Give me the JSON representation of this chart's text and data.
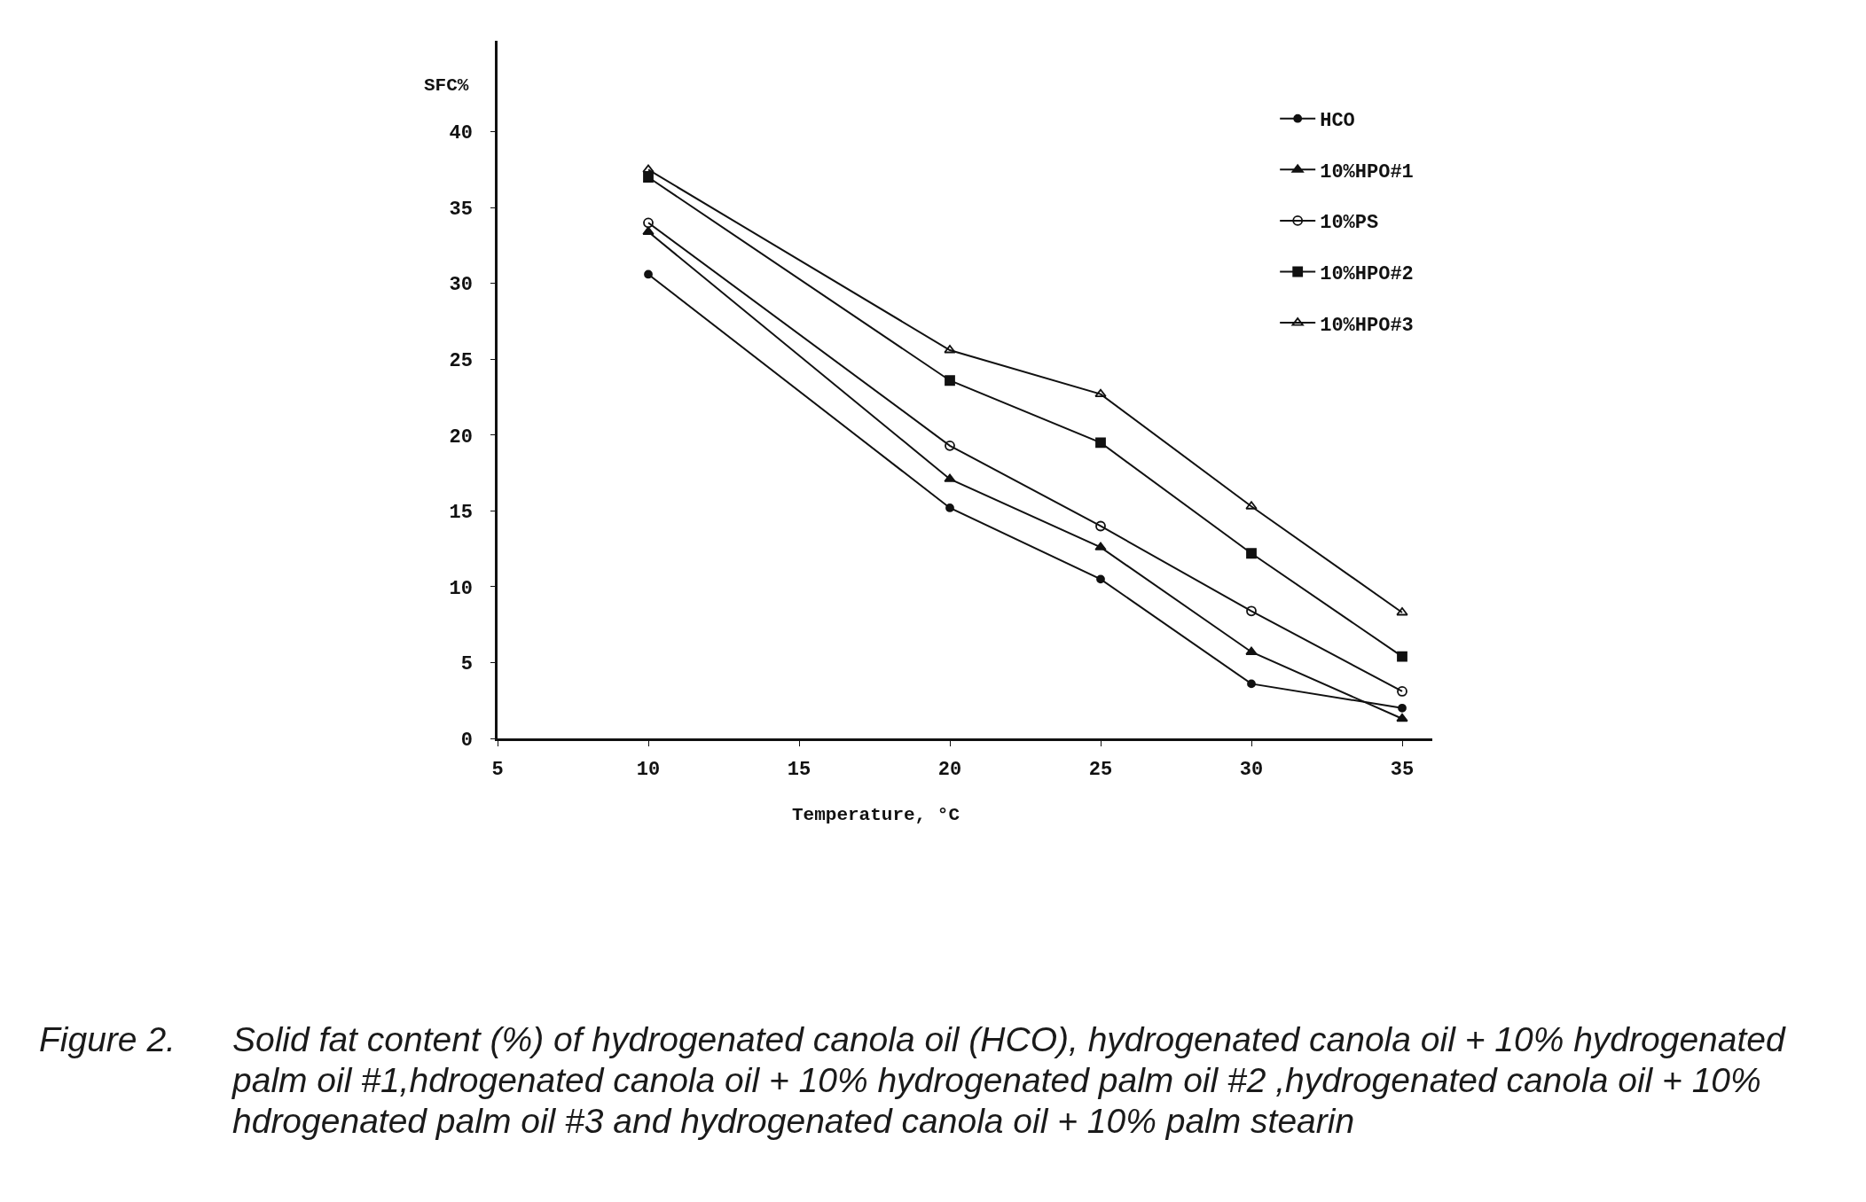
{
  "chart_data": {
    "type": "line",
    "xlabel": "Temperature, °C",
    "ylabel": "SFC%",
    "x": [
      10,
      20,
      25,
      30,
      35
    ],
    "series": [
      {
        "name": "HCO",
        "color": "#111111",
        "marker": "circle",
        "values": [
          30.6,
          15.2,
          10.5,
          3.6,
          2.0
        ]
      },
      {
        "name": "10%HPO#1",
        "color": "#111111",
        "marker": "triangle",
        "values": [
          33.4,
          17.1,
          12.6,
          5.7,
          1.3
        ]
      },
      {
        "name": "10%PS",
        "color": "#111111",
        "marker": "circle-open",
        "values": [
          34.0,
          19.3,
          14.0,
          8.4,
          3.1
        ]
      },
      {
        "name": "10%HPO#2",
        "color": "#111111",
        "marker": "square",
        "values": [
          37.0,
          23.6,
          19.5,
          12.2,
          5.4
        ]
      },
      {
        "name": "10%HPO#3",
        "color": "#111111",
        "marker": "triangle-open",
        "values": [
          37.5,
          25.6,
          22.7,
          15.3,
          8.3
        ]
      }
    ],
    "xlim": [
      5,
      36
    ],
    "ylim": [
      0,
      46
    ],
    "xticks": [
      5,
      10,
      15,
      20,
      25,
      30,
      35
    ],
    "yticks": [
      0,
      5,
      10,
      15,
      20,
      25,
      30,
      35,
      40
    ],
    "legend": "top right",
    "line_style": "solid",
    "annotations": [
      "Figure 2.",
      "Solid fat content (%) of hydrogenated canola oil (HCO), hydrogenated canola oil + 10% hydrogenated palm oil #1,hdrogenated canola oil + 10% hydrogenated palm oil #2 ,hydrogenated canola oil + 10% hdrogenated palm oil #3 and hydrogenated canola oil + 10% palm stearin"
    ]
  }
}
